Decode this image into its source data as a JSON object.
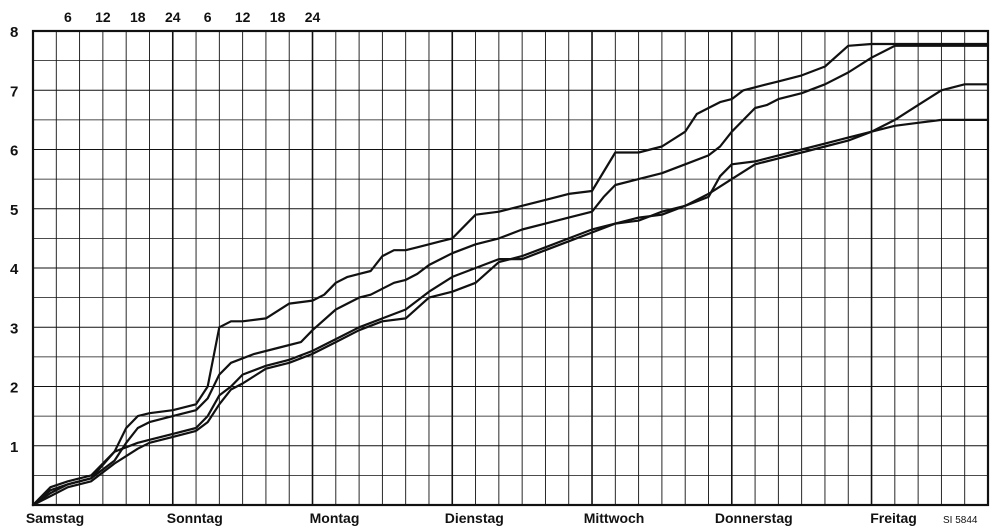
{
  "chart_data": {
    "type": "line",
    "title": "",
    "xlabel": "",
    "ylabel": "",
    "x_unit": "hours from start of Samstag",
    "xlim": [
      0,
      164
    ],
    "ylim": [
      0,
      8
    ],
    "yticks": [
      "1",
      "2",
      "3",
      "4",
      "5",
      "6",
      "7",
      "8"
    ],
    "hour_ticks_top": [
      "6",
      "12",
      "18",
      "24",
      "6",
      "12",
      "18",
      "24"
    ],
    "day_labels": [
      "Samstag",
      "Sonntag",
      "Montag",
      "Dienstag",
      "Mittwoch",
      "Donnerstag",
      "Freitag"
    ],
    "reference": "SI 5844",
    "grid": true,
    "series": [
      {
        "x": [
          0,
          3,
          6,
          10,
          14,
          16,
          18,
          20,
          24,
          28,
          30,
          32,
          34,
          36,
          40,
          44,
          48,
          50,
          52,
          54,
          56,
          58,
          60,
          62,
          64,
          66,
          68,
          70,
          72,
          76,
          80,
          84,
          88,
          92,
          96,
          100,
          104,
          108,
          112,
          114,
          116,
          118,
          120,
          122,
          124,
          126,
          128,
          132,
          136,
          140,
          144,
          148,
          152,
          156,
          160,
          164
        ],
        "values": [
          0,
          0.3,
          0.4,
          0.5,
          0.9,
          1.3,
          1.5,
          1.55,
          1.6,
          1.7,
          2.0,
          3.0,
          3.1,
          3.1,
          3.15,
          3.4,
          3.45,
          3.55,
          3.75,
          3.85,
          3.9,
          3.95,
          4.2,
          4.3,
          4.3,
          4.35,
          4.4,
          4.45,
          4.5,
          4.9,
          4.95,
          5.05,
          5.15,
          5.25,
          5.3,
          5.95,
          5.95,
          6.05,
          6.3,
          6.6,
          6.7,
          6.8,
          6.85,
          7.0,
          7.05,
          7.1,
          7.15,
          7.25,
          7.4,
          7.75,
          7.78,
          7.78,
          7.78,
          7.78,
          7.78,
          7.78
        ]
      },
      {
        "x": [
          0,
          3,
          6,
          10,
          14,
          16,
          18,
          20,
          24,
          28,
          30,
          32,
          34,
          38,
          42,
          46,
          48,
          52,
          56,
          58,
          60,
          62,
          64,
          66,
          68,
          70,
          72,
          76,
          80,
          84,
          88,
          92,
          96,
          98,
          100,
          104,
          108,
          112,
          116,
          118,
          120,
          122,
          124,
          126,
          128,
          132,
          136,
          140,
          144,
          148,
          152,
          156,
          160,
          164
        ],
        "values": [
          0,
          0.25,
          0.35,
          0.45,
          0.75,
          1.05,
          1.3,
          1.4,
          1.5,
          1.6,
          1.8,
          2.2,
          2.4,
          2.55,
          2.65,
          2.75,
          2.95,
          3.3,
          3.5,
          3.55,
          3.65,
          3.75,
          3.8,
          3.9,
          4.05,
          4.15,
          4.25,
          4.4,
          4.5,
          4.65,
          4.75,
          4.85,
          4.95,
          5.2,
          5.4,
          5.5,
          5.6,
          5.75,
          5.9,
          6.05,
          6.3,
          6.5,
          6.7,
          6.75,
          6.85,
          6.95,
          7.1,
          7.3,
          7.55,
          7.75,
          7.75,
          7.75,
          7.75,
          7.75
        ]
      },
      {
        "x": [
          0,
          3,
          6,
          10,
          14,
          18,
          20,
          24,
          28,
          30,
          32,
          34,
          36,
          40,
          44,
          48,
          52,
          56,
          60,
          64,
          68,
          72,
          76,
          80,
          84,
          88,
          92,
          96,
          100,
          104,
          108,
          112,
          116,
          120,
          124,
          128,
          132,
          136,
          140,
          144,
          148,
          152,
          156,
          160,
          164
        ],
        "values": [
          0,
          0.2,
          0.35,
          0.45,
          0.9,
          1.05,
          1.1,
          1.2,
          1.3,
          1.5,
          1.85,
          2.0,
          2.2,
          2.35,
          2.45,
          2.6,
          2.8,
          3.0,
          3.15,
          3.3,
          3.6,
          3.85,
          4.0,
          4.15,
          4.15,
          4.3,
          4.45,
          4.6,
          4.75,
          4.85,
          4.9,
          5.05,
          5.25,
          5.5,
          5.75,
          5.85,
          5.95,
          6.05,
          6.15,
          6.3,
          6.5,
          6.75,
          7.0,
          7.1,
          7.1
        ]
      },
      {
        "x": [
          0,
          3,
          6,
          10,
          14,
          18,
          20,
          24,
          28,
          30,
          32,
          34,
          36,
          40,
          44,
          48,
          52,
          56,
          60,
          64,
          68,
          72,
          76,
          80,
          84,
          88,
          92,
          96,
          100,
          104,
          108,
          112,
          116,
          118,
          120,
          124,
          128,
          132,
          136,
          140,
          144,
          148,
          152,
          156,
          160,
          164
        ],
        "values": [
          0,
          0.15,
          0.3,
          0.4,
          0.7,
          0.95,
          1.05,
          1.15,
          1.25,
          1.4,
          1.7,
          1.95,
          2.05,
          2.3,
          2.4,
          2.55,
          2.75,
          2.95,
          3.1,
          3.15,
          3.5,
          3.6,
          3.75,
          4.1,
          4.2,
          4.35,
          4.5,
          4.65,
          4.75,
          4.8,
          4.95,
          5.05,
          5.2,
          5.55,
          5.75,
          5.8,
          5.9,
          6.0,
          6.1,
          6.2,
          6.3,
          6.4,
          6.45,
          6.5,
          6.5,
          6.5
        ]
      }
    ]
  }
}
